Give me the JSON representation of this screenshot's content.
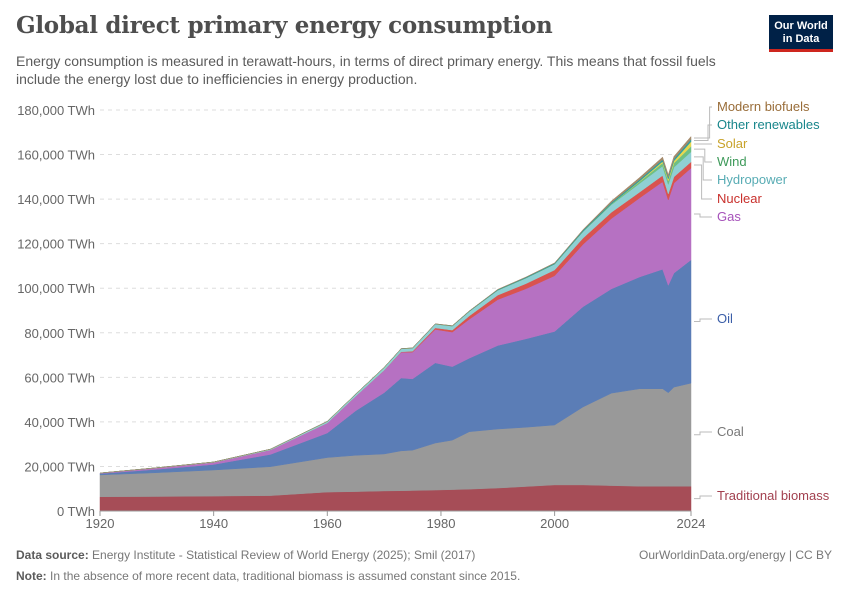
{
  "header": {
    "title": "Global direct primary energy consumption",
    "subtitle": "Energy consumption is measured in terawatt-hours, in terms of direct primary energy. This means that fossil fuels include the energy lost due to inefficiencies in energy production.",
    "logo_line1": "Our World",
    "logo_line2": "in Data"
  },
  "footer": {
    "source_label": "Data source:",
    "source_text": "Energy Institute - Statistical Review of World Energy (2025); Smil (2017)",
    "note_label": "Note:",
    "note_text": "In the absence of more recent data, traditional biomass is assumed constant since 2015.",
    "url": "OurWorldinData.org/energy | CC BY"
  },
  "chart_data": {
    "type": "area",
    "stacked": true,
    "title": "Global direct primary energy consumption",
    "ylim": [
      0,
      180000
    ],
    "yticks": [
      0,
      20000,
      40000,
      60000,
      80000,
      100000,
      120000,
      140000,
      160000,
      180000
    ],
    "ytick_labels": [
      "0 TWh",
      "20,000 TWh",
      "40,000 TWh",
      "60,000 TWh",
      "80,000 TWh",
      "100,000 TWh",
      "120,000 TWh",
      "140,000 TWh",
      "160,000 TWh",
      "180,000 TWh"
    ],
    "xlim": [
      1920,
      2024
    ],
    "xticks": [
      1920,
      1940,
      1960,
      1980,
      2000,
      2024
    ],
    "grid": "horizontal dashed",
    "legend": "right, labels at series ends",
    "x": [
      1920,
      1930,
      1940,
      1950,
      1960,
      1965,
      1970,
      1973,
      1975,
      1979,
      1982,
      1985,
      1990,
      1995,
      2000,
      2005,
      2010,
      2015,
      2019,
      2020,
      2021,
      2024
    ],
    "series": [
      {
        "name": "Traditional biomass",
        "color": "#a64d57",
        "label_color": "#a2404f",
        "values": [
          6400,
          6500,
          6700,
          6900,
          8500,
          8700,
          9000,
          9100,
          9200,
          9400,
          9600,
          9800,
          10300,
          11000,
          11700,
          11700,
          11400,
          11100,
          11100,
          11100,
          11100,
          11100
        ]
      },
      {
        "name": "Coal",
        "color": "#999999",
        "label_color": "#777777",
        "values": [
          9800,
          10700,
          11700,
          13000,
          15500,
          16300,
          16600,
          17900,
          18100,
          21100,
          22200,
          25800,
          26500,
          26600,
          26900,
          35000,
          41500,
          43800,
          43800,
          42000,
          44500,
          46300
        ]
      },
      {
        "name": "Oil",
        "color": "#5b7db6",
        "label_color": "#3b5ea8",
        "values": [
          600,
          1500,
          2500,
          5500,
          11000,
          20000,
          27500,
          32700,
          32000,
          36000,
          33000,
          33000,
          37500,
          39700,
          42000,
          45000,
          46800,
          50200,
          53600,
          48200,
          51200,
          55300
        ]
      },
      {
        "name": "Gas",
        "color": "#b671c2",
        "label_color": "#a652ba",
        "values": [
          200,
          600,
          900,
          2000,
          4500,
          6500,
          10000,
          11600,
          12000,
          15000,
          15500,
          17500,
          20600,
          22500,
          25000,
          28000,
          31600,
          35500,
          39300,
          38300,
          40400,
          41200
        ]
      },
      {
        "name": "Nuclear",
        "color": "#d9534f",
        "label_color": "#c9302c",
        "values": [
          0,
          0,
          0,
          0,
          0,
          30,
          80,
          200,
          400,
          700,
          900,
          1500,
          2000,
          2300,
          2600,
          2800,
          2800,
          2600,
          2800,
          2700,
          2800,
          2800
        ]
      },
      {
        "name": "Hydropower",
        "color": "#8fd0d3",
        "label_color": "#58acb4",
        "values": [
          60,
          130,
          190,
          340,
          700,
          900,
          1200,
          1300,
          1400,
          1700,
          1800,
          2000,
          2200,
          2500,
          2600,
          2900,
          3400,
          3900,
          4200,
          4300,
          4300,
          4500
        ]
      },
      {
        "name": "Wind",
        "color": "#6fbf84",
        "label_color": "#3e9a5a",
        "values": [
          0,
          0,
          0,
          0,
          0,
          0,
          0,
          0,
          0,
          0,
          0,
          0,
          5,
          10,
          30,
          100,
          340,
          830,
          1400,
          1600,
          1850,
          2500
        ]
      },
      {
        "name": "Solar",
        "color": "#e8d84f",
        "label_color": "#c8a32a",
        "values": [
          0,
          0,
          0,
          0,
          0,
          0,
          0,
          0,
          0,
          0,
          0,
          0,
          0,
          0,
          1,
          5,
          30,
          260,
          700,
          850,
          1000,
          2100
        ]
      },
      {
        "name": "Other renewables",
        "color": "#2c9ea3",
        "label_color": "#18868b",
        "values": [
          0,
          10,
          20,
          40,
          60,
          80,
          100,
          110,
          110,
          120,
          150,
          200,
          300,
          350,
          400,
          500,
          600,
          700,
          850,
          880,
          920,
          1000
        ]
      },
      {
        "name": "Modern biofuels",
        "color": "#a48a6b",
        "label_color": "#996d39",
        "values": [
          0,
          0,
          0,
          0,
          0,
          0,
          0,
          0,
          0,
          20,
          40,
          60,
          100,
          120,
          150,
          300,
          700,
          900,
          1100,
          1000,
          1100,
          1300
        ]
      }
    ]
  }
}
